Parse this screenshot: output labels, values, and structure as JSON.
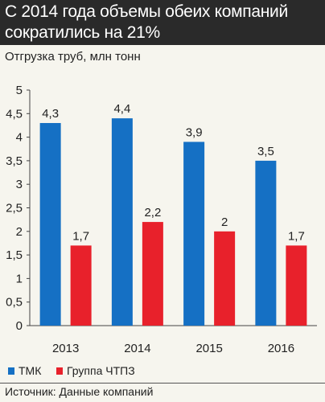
{
  "header": {
    "title_line1": "С 2014 года объемы обеих компаний",
    "title_line2": "сократились на 21%"
  },
  "subtitle": "Отгрузка труб, млн тонн",
  "source": "Источник: Данные компаний",
  "colors": {
    "tmk": "#1570c4",
    "chtpz": "#e8212b",
    "header_bg": "#2a2a2a",
    "background": "#f6f5ee"
  },
  "chart_data": {
    "type": "bar",
    "categories": [
      "2013",
      "2014",
      "2015",
      "2016"
    ],
    "series": [
      {
        "name": "ТМК",
        "values": [
          4.3,
          4.4,
          3.9,
          3.5
        ],
        "labels": [
          "4,3",
          "4,4",
          "3,9",
          "3,5"
        ]
      },
      {
        "name": "Группа ЧТПЗ",
        "values": [
          1.7,
          2.2,
          2.0,
          1.7
        ],
        "labels": [
          "1,7",
          "2,2",
          "2",
          "1,7"
        ]
      }
    ],
    "ylim": [
      0,
      5
    ],
    "yticks": [
      "0",
      "0,5",
      "1",
      "1,5",
      "2",
      "2,5",
      "3",
      "3,5",
      "4",
      "4,5",
      "5"
    ],
    "grid": false,
    "legend": "bottom-left"
  }
}
